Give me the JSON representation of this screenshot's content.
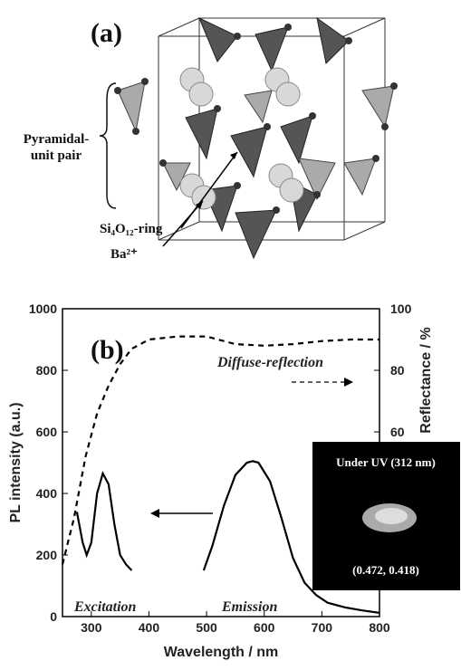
{
  "figure_a": {
    "panel_label": "(a)",
    "labels": [
      "Pyramidal-",
      "unit pair",
      "Si₄O₁₂-ring",
      "Ba²⁺"
    ]
  },
  "chart_data": {
    "type": "line",
    "panel_label": "(b)",
    "x_label": "Wavelength / nm",
    "y_label": "PL intensity (a.u.)",
    "y2_label": "Reflectance / %",
    "xlim": [
      250,
      800
    ],
    "xticks": [
      300,
      400,
      500,
      600,
      700,
      800
    ],
    "ylim": [
      0,
      1000
    ],
    "yticks": [
      0,
      200,
      400,
      600,
      800,
      1000
    ],
    "y2lim": [
      0,
      100
    ],
    "y2ticks": [
      60,
      80,
      100
    ],
    "series": [
      {
        "name": "Excitation",
        "color": "#000000",
        "x": [
          275,
          285,
          292,
          300,
          310,
          320,
          330,
          340,
          350,
          360,
          370
        ],
        "values": [
          340,
          240,
          200,
          240,
          400,
          465,
          430,
          300,
          200,
          170,
          150
        ]
      },
      {
        "name": "Emission",
        "color": "#000000",
        "x": [
          495,
          510,
          530,
          550,
          570,
          580,
          590,
          610,
          630,
          650,
          670,
          690,
          710,
          740,
          770,
          800
        ],
        "values": [
          150,
          230,
          360,
          460,
          500,
          505,
          500,
          440,
          320,
          190,
          110,
          70,
          45,
          30,
          20,
          12
        ]
      },
      {
        "name": "Diffuse-reflection",
        "color": "#000000",
        "dashed": true,
        "axis": "y2",
        "x": [
          250,
          270,
          290,
          310,
          330,
          350,
          370,
          400,
          450,
          500,
          550,
          600,
          650,
          700,
          750,
          800
        ],
        "values": [
          17,
          32,
          52,
          66,
          75,
          82,
          87,
          90,
          91,
          91,
          88.5,
          88,
          88.5,
          89.5,
          90,
          90
        ]
      }
    ],
    "inset": {
      "title": "Under UV (312 nm)",
      "coordinates": "(0.472, 0.418)"
    }
  }
}
